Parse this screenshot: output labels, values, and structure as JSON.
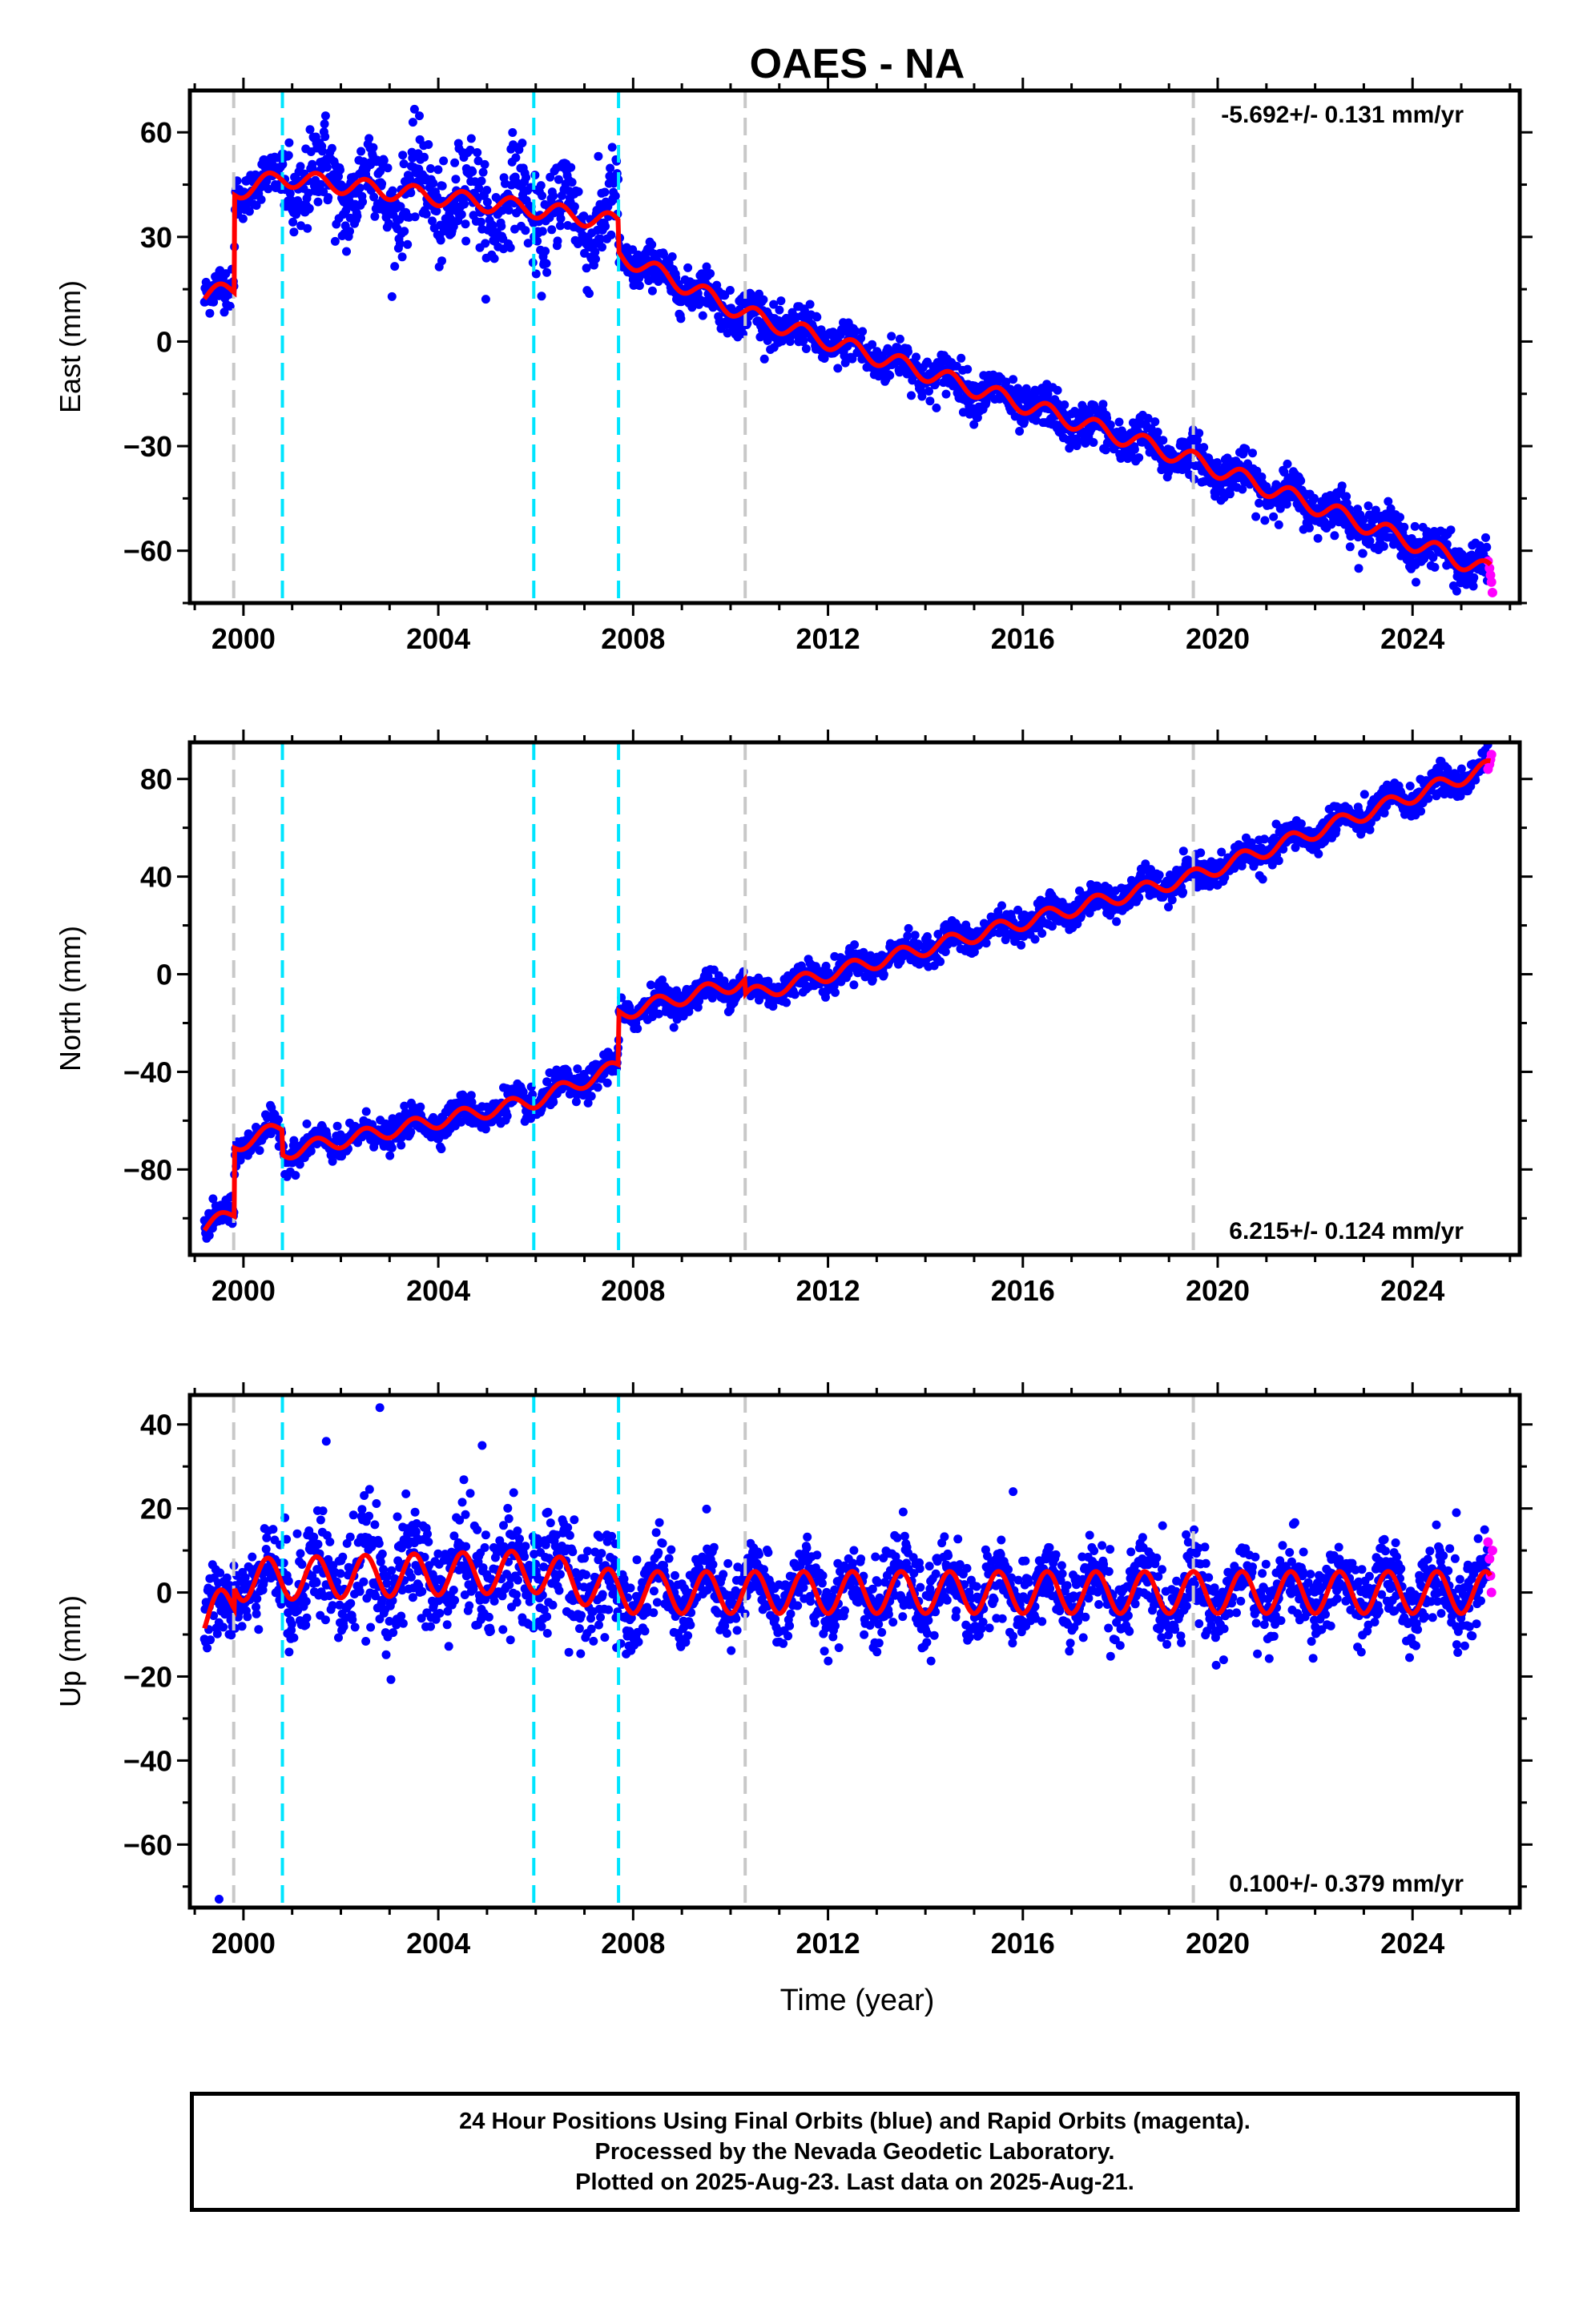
{
  "title": "OAES - NA",
  "xlabel": "Time (year)",
  "x_ticks": [
    "2000",
    "2004",
    "2008",
    "2012",
    "2016",
    "2020",
    "2024"
  ],
  "colors": {
    "final_orbits": "#0000ff",
    "rapid_orbits": "#ff00ff",
    "model_fit": "#ff0000",
    "equipment_change": "#00e5ff",
    "event_marker": "#c8c8c8"
  },
  "chart_data": [
    {
      "type": "scatter",
      "component": "East",
      "ylabel": "East (mm)",
      "x_range": [
        1998.9,
        2026.2
      ],
      "ylim": [
        -75,
        72
      ],
      "y_ticks": [
        60,
        30,
        0,
        -30,
        -60
      ],
      "rate_label": "-5.692+/- 0.131 mm/yr",
      "rate_position": "top-right",
      "gray_event_lines": [
        1999.8,
        2010.3,
        2019.5
      ],
      "cyan_change_lines": [
        2000.8,
        2005.96,
        2007.7
      ],
      "fit_anchors": [
        [
          1999.2,
          13
        ],
        [
          1999.81,
          15
        ],
        [
          1999.82,
          43
        ],
        [
          2000.8,
          47
        ],
        [
          2005.96,
          38
        ],
        [
          2007.69,
          34
        ],
        [
          2007.71,
          25
        ],
        [
          2010.3,
          8
        ],
        [
          2019.5,
          -34
        ],
        [
          2025.6,
          -66
        ]
      ],
      "seasonal_amplitude_mm": 2.5,
      "scatter_mm": 3,
      "high_scatter_period": [
        2000.8,
        2007.7
      ],
      "rapid_points": [
        [
          2025.55,
          -63
        ],
        [
          2025.58,
          -65
        ],
        [
          2025.6,
          -67
        ],
        [
          2025.62,
          -69
        ],
        [
          2025.64,
          -72
        ]
      ]
    },
    {
      "type": "scatter",
      "component": "North",
      "ylabel": "North (mm)",
      "x_range": [
        1998.9,
        2026.2
      ],
      "ylim": [
        -115,
        95
      ],
      "y_ticks": [
        80,
        40,
        0,
        -40,
        -80
      ],
      "rate_label": "6.215+/- 0.124 mm/yr",
      "rate_position": "bottom-right",
      "gray_event_lines": [
        1999.8,
        2010.3,
        2019.5
      ],
      "cyan_change_lines": [
        2000.8,
        2005.96,
        2007.7
      ],
      "fit_anchors": [
        [
          1999.2,
          -104
        ],
        [
          1999.81,
          -98
        ],
        [
          1999.82,
          -70
        ],
        [
          2000.79,
          -63
        ],
        [
          2000.81,
          -73
        ],
        [
          2005.96,
          -52
        ],
        [
          2007.69,
          -38
        ],
        [
          2007.71,
          -16
        ],
        [
          2010.29,
          -3
        ],
        [
          2010.31,
          -9
        ],
        [
          2019.5,
          40
        ],
        [
          2025.6,
          85
        ]
      ],
      "seasonal_amplitude_mm": 3,
      "scatter_mm": 3,
      "rapid_points": [
        [
          2025.55,
          84
        ],
        [
          2025.58,
          86
        ],
        [
          2025.6,
          88
        ],
        [
          2025.62,
          90
        ]
      ]
    },
    {
      "type": "scatter",
      "component": "Up",
      "ylabel": "Up (mm)",
      "x_range": [
        1998.9,
        2026.2
      ],
      "ylim": [
        -75,
        47
      ],
      "y_ticks": [
        40,
        20,
        0,
        -20,
        -40,
        -60
      ],
      "rate_label": "0.100+/- 0.379 mm/yr",
      "rate_position": "bottom-right",
      "gray_event_lines": [
        1999.8,
        2010.3,
        2019.5
      ],
      "cyan_change_lines": [
        2000.8,
        2005.96,
        2007.7
      ],
      "fit_anchors": [
        [
          1999.2,
          -7
        ],
        [
          1999.81,
          -2
        ],
        [
          1999.82,
          3
        ],
        [
          2005.96,
          5
        ],
        [
          2007.7,
          0
        ],
        [
          2025.6,
          0
        ]
      ],
      "seasonal_amplitude_mm": 5,
      "scatter_mm": 4.5,
      "outliers": [
        [
          1999.5,
          -73
        ],
        [
          2002.8,
          44
        ],
        [
          2004.9,
          35
        ],
        [
          2001.7,
          36
        ],
        [
          2024.9,
          19
        ],
        [
          2015.8,
          24
        ]
      ],
      "rapid_points": [
        [
          2025.55,
          12
        ],
        [
          2025.58,
          8
        ],
        [
          2025.6,
          4
        ],
        [
          2025.62,
          0
        ],
        [
          2025.64,
          10
        ]
      ]
    }
  ],
  "footer": {
    "line1": "24 Hour Positions Using Final Orbits (blue) and Rapid Orbits (magenta).",
    "line2": "Processed by the Nevada Geodetic Laboratory.",
    "line3": "Plotted on 2025-Aug-23. Last data on 2025-Aug-21."
  }
}
